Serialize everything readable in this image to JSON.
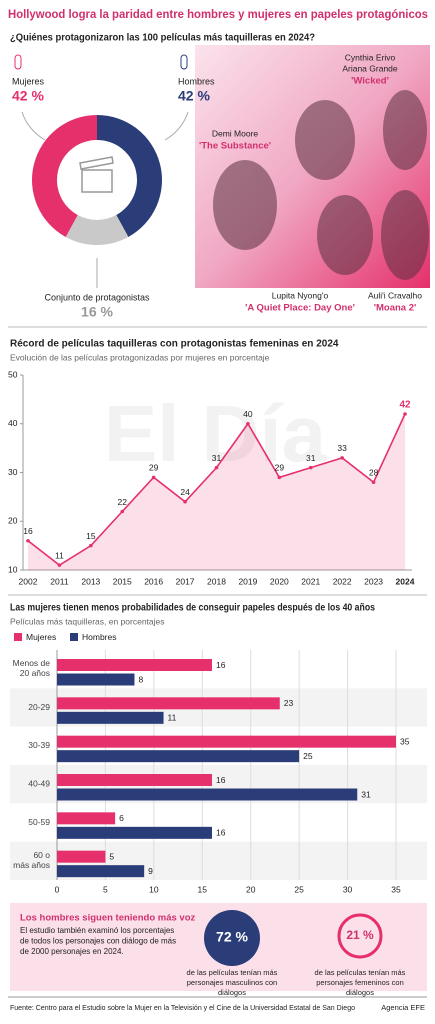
{
  "header": {
    "title": "Hollywood logra la paridad entre hombres y mujeres en papeles protagónicos"
  },
  "chart_data": [
    {
      "type": "donut",
      "title": "¿Quiénes protagonizaron las 100 películas más taquilleras en 2024?",
      "categories": [
        "Mujeres",
        "Hombres",
        "Conjunto de protagonistas"
      ],
      "values": [
        42,
        42,
        16
      ],
      "value_labels": [
        "42 %",
        "42 %",
        "16 %"
      ],
      "colors": [
        "#e5306b",
        "#2b3d78",
        "#c9c9c9"
      ]
    },
    {
      "type": "line",
      "title": "Récord de películas taquilleras con protagonistas femeninas en 2024",
      "subtitle": "Evolución de las películas protagonizadas por mujeres en porcentaje",
      "watermark": "El Día",
      "categories": [
        "2002",
        "2011",
        "2013",
        "2015",
        "2016",
        "2017",
        "2018",
        "2019",
        "2020",
        "2021",
        "2022",
        "2023",
        "2024"
      ],
      "values": [
        16,
        11,
        15,
        22,
        29,
        24,
        31,
        40,
        29,
        31,
        33,
        28,
        42
      ],
      "color": "#e5306b",
      "ylim": [
        10,
        50
      ],
      "yticks": [
        10,
        20,
        30,
        40,
        50
      ]
    },
    {
      "type": "hbar",
      "title": "Las mujeres tienen menos probabilidades de conseguir papeles después de los 40 años",
      "subtitle": "Películas más taquilleras, en porcentajes",
      "categories": [
        "Menos de 20 años",
        "20-29",
        "30-39",
        "40-49",
        "50-59",
        "60 o más años"
      ],
      "series": [
        {
          "name": "Mujeres",
          "color": "#e5306b",
          "values": [
            16,
            23,
            35,
            16,
            6,
            5
          ]
        },
        {
          "name": "Hombres",
          "color": "#2b3d78",
          "values": [
            8,
            11,
            25,
            31,
            16,
            9
          ]
        }
      ],
      "xlim": [
        0,
        35
      ],
      "xticks": [
        0,
        5,
        10,
        15,
        20,
        25,
        30,
        35
      ]
    }
  ],
  "photo_captions": [
    {
      "names": [
        "Cynthia Erivo",
        "Ariana Grande"
      ],
      "film": "'Wicked'"
    },
    {
      "names": [
        "Demi Moore"
      ],
      "film": "'The Substance'"
    },
    {
      "names": [
        "Lupita Nyong'o"
      ],
      "film": "'A Quiet Place: Day One'"
    },
    {
      "names": [
        "Auli'i Cravalho"
      ],
      "film": "'Moana 2'"
    }
  ],
  "callout": {
    "title": "Los hombres siguen teniendo más voz",
    "text": "El estudio también examinó los porcentajes de todos los personajes con diálogo de más de 2000 personajes en 2024.",
    "stats": [
      {
        "value": "72 %",
        "text": "de las películas tenían más personajes masculinos con diálogos"
      },
      {
        "value": "21 %",
        "text": "de las películas tenían más personajes femeninos con diálogos"
      }
    ]
  },
  "footer": {
    "source": "Fuente: Centro para el Estudio sobre la Mujer en la Televisión y el Cine de la Universidad Estatal de San Diego",
    "credit": "Agencia EFE"
  }
}
